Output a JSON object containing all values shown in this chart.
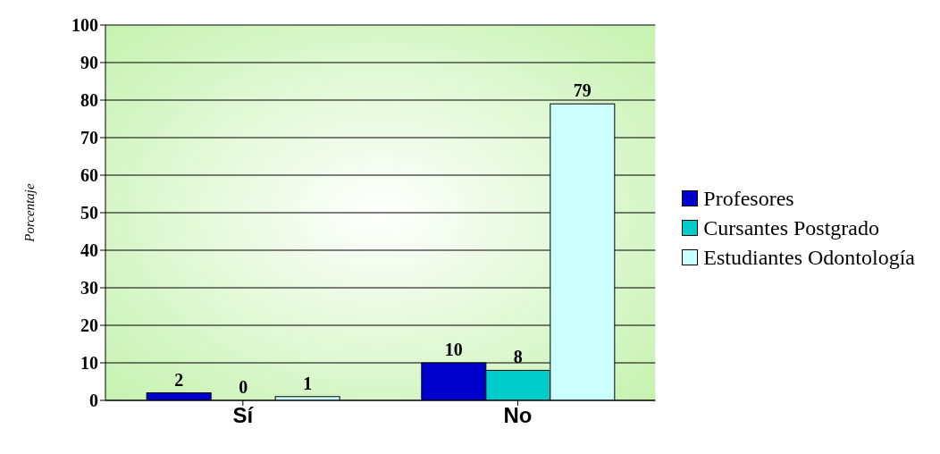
{
  "chart_data": {
    "type": "bar",
    "ylabel": "Porcentaje",
    "categories": [
      "Sí",
      "No"
    ],
    "series": [
      {
        "name": "Profesores",
        "color": "#0000cc",
        "values": [
          2,
          10
        ]
      },
      {
        "name": "Cursantes Postgrado",
        "color": "#00cccc",
        "values": [
          0,
          8
        ]
      },
      {
        "name": "Estudiantes Odontología",
        "color": "#ccffff",
        "values": [
          1,
          79
        ]
      }
    ],
    "ylim": [
      0,
      100
    ],
    "yticks": [
      0,
      10,
      20,
      30,
      40,
      50,
      60,
      70,
      80,
      90,
      100
    ],
    "grid": "y",
    "legend": "right",
    "data_labels": true
  }
}
